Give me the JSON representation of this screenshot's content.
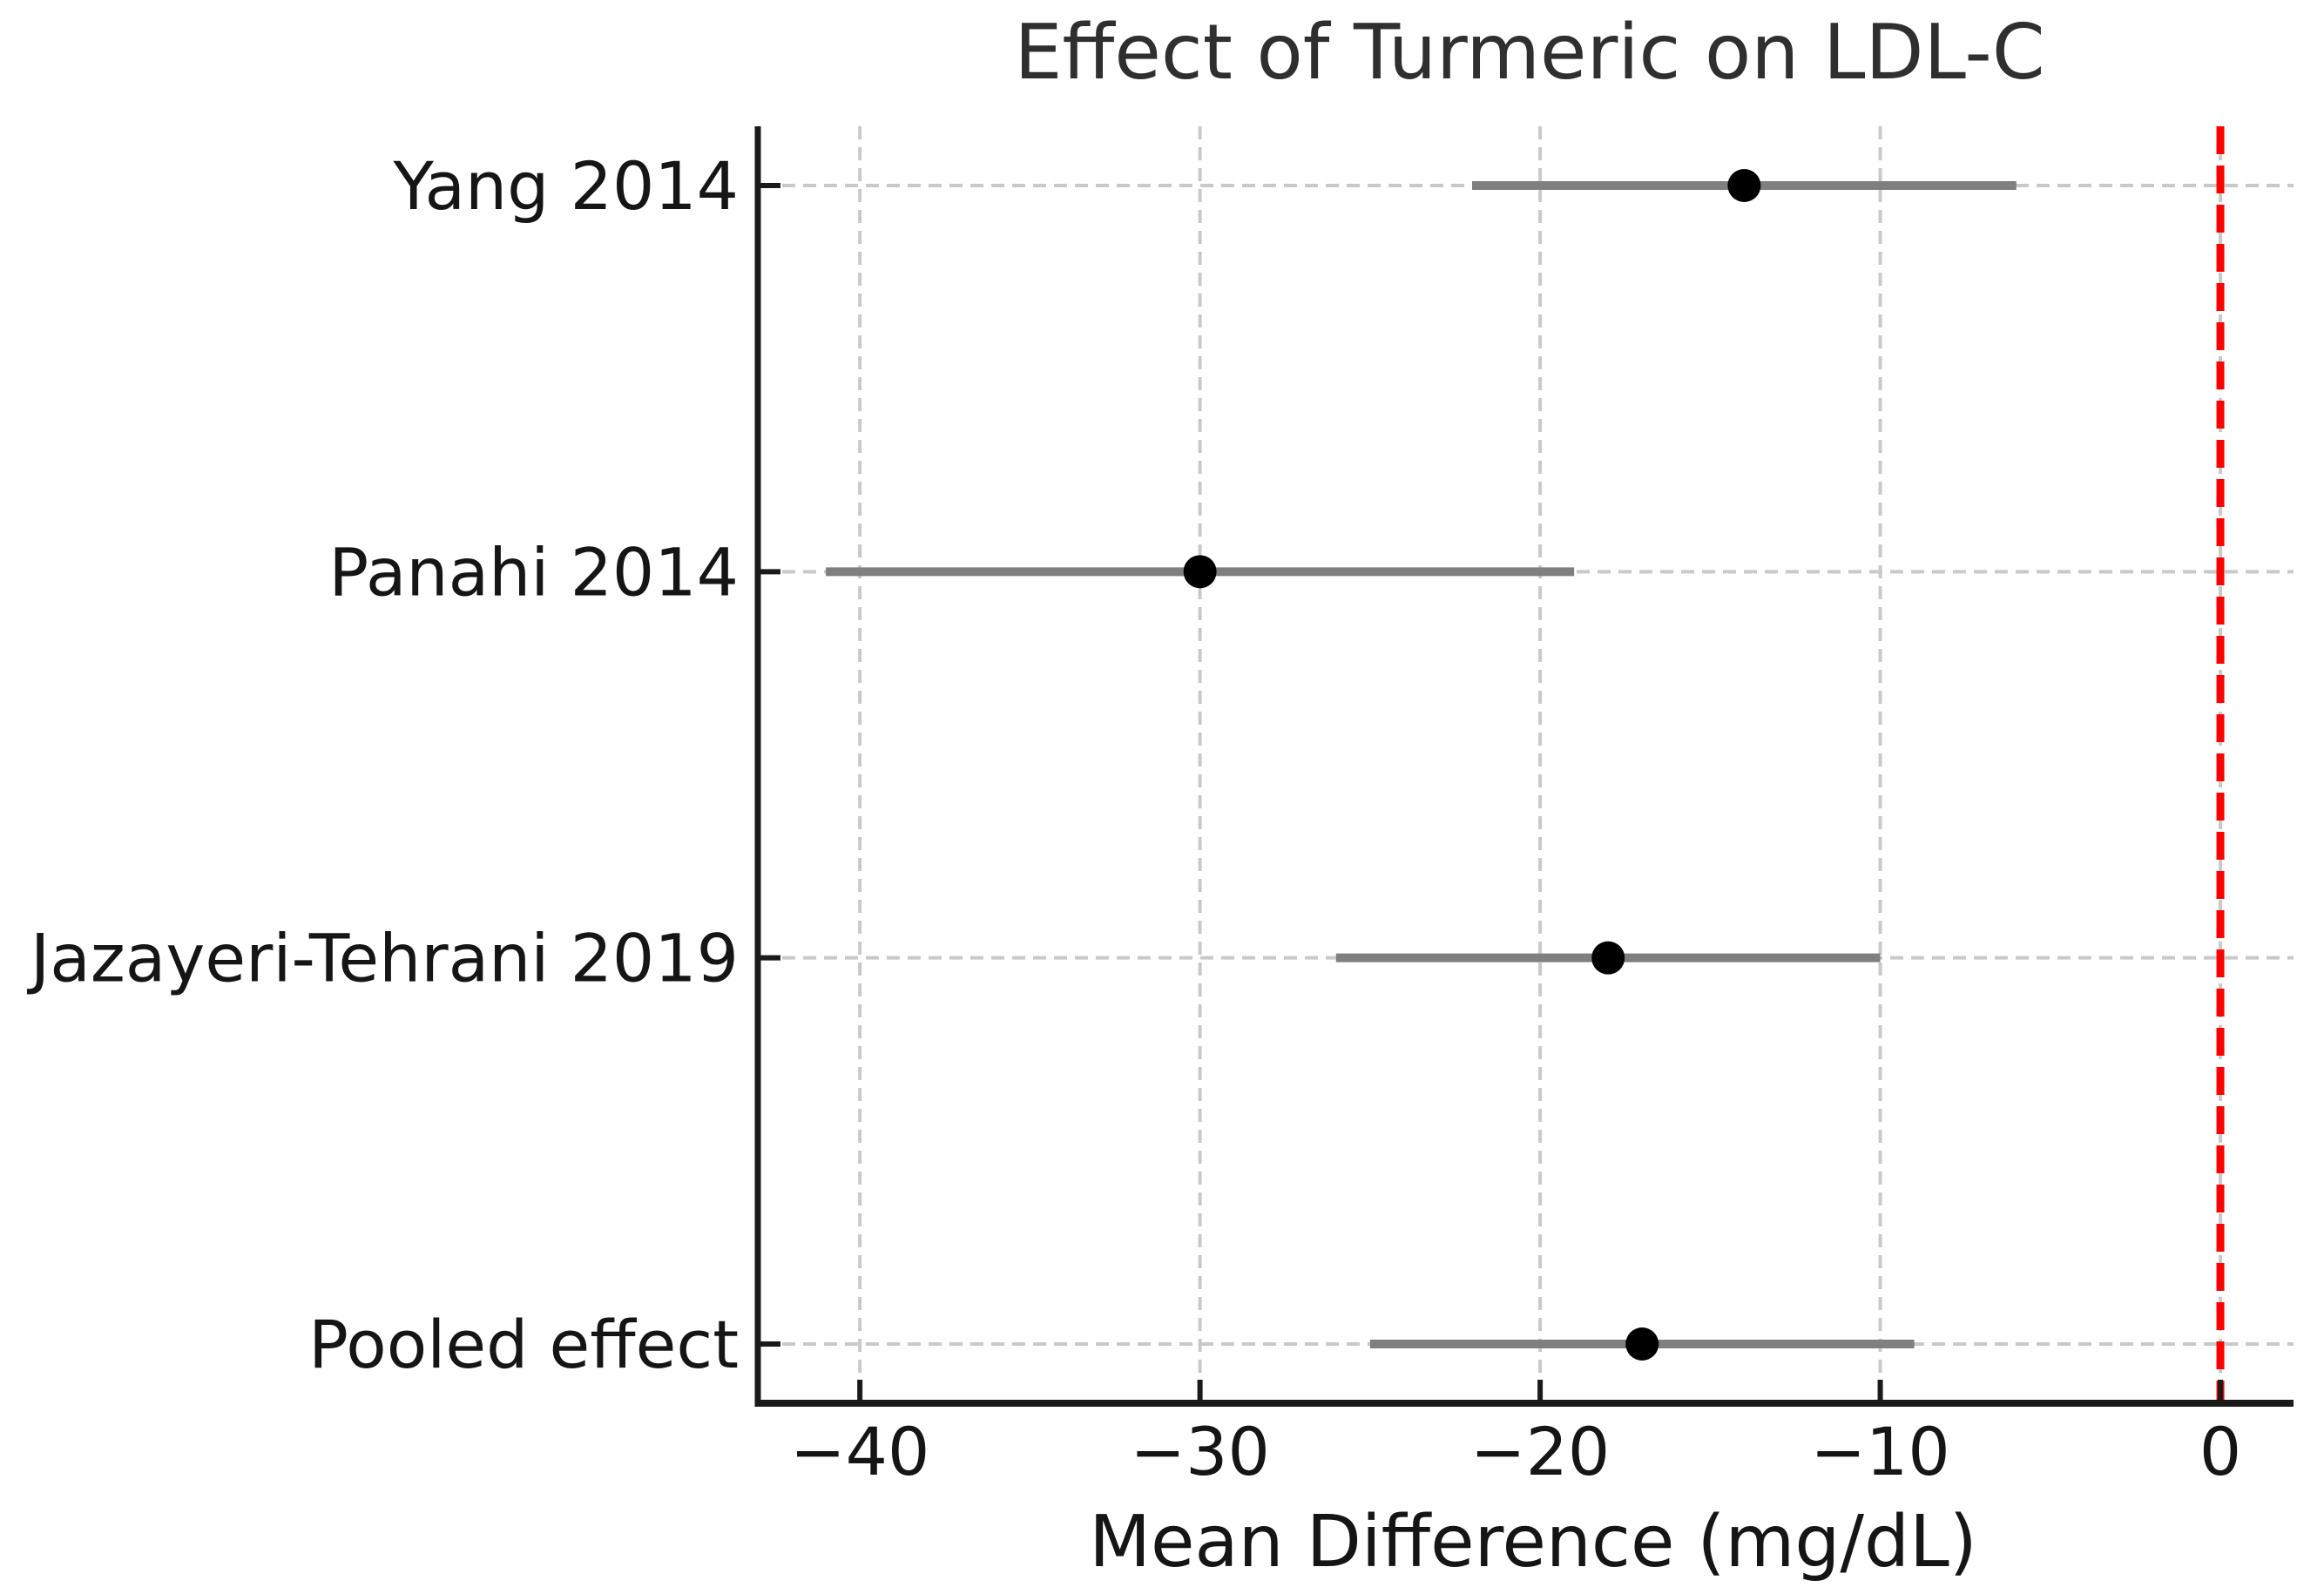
{
  "chart_data": {
    "type": "scatter",
    "subtype": "forest-plot",
    "title": "Effect of Turmeric on LDL-C",
    "xlabel": "Mean Difference (mg/dL)",
    "ylabel": "",
    "categories": [
      "Yang 2014",
      "Panahi 2014",
      "Jazayeri-Tehrani 2019",
      "Pooled effect"
    ],
    "series": [
      {
        "name": "Mean difference (mg/dL)",
        "values": [
          -14,
          -30,
          -18,
          -17
        ]
      }
    ],
    "ci_lower": [
      -22,
      -41,
      -26,
      -25
    ],
    "ci_upper": [
      -6,
      -19,
      -10,
      -9
    ],
    "x_ticks": [
      -40,
      -30,
      -20,
      -10,
      0
    ],
    "x_tick_labels": [
      "−40",
      "−30",
      "−20",
      "−10",
      "0"
    ],
    "xlim": [
      -43,
      2.15
    ],
    "reference_line_x": 0,
    "grid": true,
    "legend": "none"
  },
  "colors": {
    "background": "#ffffff",
    "grid": "#c9c9c9",
    "reference_line": "#ff0000",
    "error_bar": "#7f7f7f",
    "marker": "#000000",
    "axis": "#1a1a1a",
    "title_text": "#2f2f2f",
    "label_text": "#151515"
  }
}
